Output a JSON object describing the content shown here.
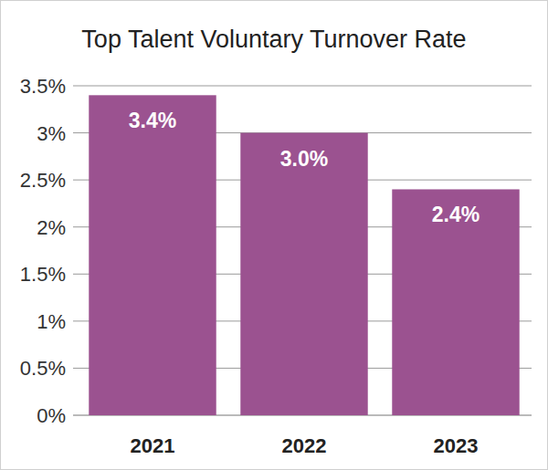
{
  "chart_data": {
    "type": "bar",
    "title": "Top Talent Voluntary Turnover Rate",
    "categories": [
      "2021",
      "2022",
      "2023"
    ],
    "values": [
      3.4,
      3.0,
      2.4
    ],
    "value_labels": [
      "3.4%",
      "3.0%",
      "2.4%"
    ],
    "color": "#9b5290",
    "ylim": [
      0,
      3.5
    ],
    "yticks": [
      {
        "value": 0,
        "label": "0%"
      },
      {
        "value": 0.5,
        "label": "0.5%"
      },
      {
        "value": 1,
        "label": "1%"
      },
      {
        "value": 1.5,
        "label": "1.5%"
      },
      {
        "value": 2,
        "label": "2%"
      },
      {
        "value": 2.5,
        "label": "2.5%"
      },
      {
        "value": 3,
        "label": "3%"
      },
      {
        "value": 3.5,
        "label": "3.5%"
      }
    ],
    "grid": true,
    "data_labels": true
  }
}
